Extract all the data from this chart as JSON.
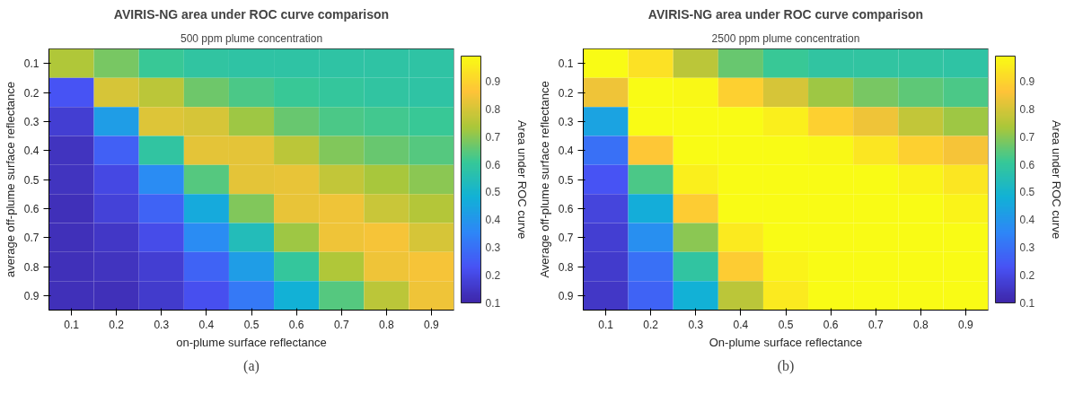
{
  "chart_data": [
    {
      "type": "heatmap",
      "title": "AVIRIS-NG area under ROC curve comparison",
      "subtitle": "500 ppm plume concentration",
      "xlabel": "on-plume surface reflectance",
      "ylabel": "average off-plume surface reflectance",
      "clabel": "Area under ROC curve",
      "annotations": [
        "(a)"
      ],
      "categories": [
        "0.1",
        "0.2",
        "0.3",
        "0.4",
        "0.5",
        "0.6",
        "0.7",
        "0.8",
        "0.9"
      ],
      "y_categories": [
        "0.1",
        "0.2",
        "0.3",
        "0.4",
        "0.5",
        "0.6",
        "0.7",
        "0.8",
        "0.9"
      ],
      "cells": [
        [
          0.74,
          0.68,
          0.61,
          0.59,
          0.58,
          0.58,
          0.58,
          0.58,
          0.58
        ],
        [
          0.23,
          0.8,
          0.76,
          0.67,
          0.63,
          0.61,
          0.6,
          0.59,
          0.58
        ],
        [
          0.17,
          0.42,
          0.81,
          0.8,
          0.72,
          0.66,
          0.63,
          0.62,
          0.61
        ],
        [
          0.14,
          0.26,
          0.59,
          0.82,
          0.82,
          0.76,
          0.69,
          0.66,
          0.64
        ],
        [
          0.14,
          0.2,
          0.37,
          0.64,
          0.82,
          0.83,
          0.77,
          0.73,
          0.7
        ],
        [
          0.13,
          0.18,
          0.27,
          0.46,
          0.69,
          0.83,
          0.84,
          0.78,
          0.75
        ],
        [
          0.13,
          0.15,
          0.21,
          0.37,
          0.54,
          0.72,
          0.84,
          0.85,
          0.8
        ],
        [
          0.13,
          0.14,
          0.17,
          0.27,
          0.42,
          0.6,
          0.74,
          0.84,
          0.85
        ],
        [
          0.13,
          0.13,
          0.16,
          0.22,
          0.32,
          0.48,
          0.64,
          0.76,
          0.84
        ]
      ],
      "clim": [
        0.1,
        0.99
      ],
      "cticks": [
        0.1,
        0.2,
        0.3,
        0.4,
        0.5,
        0.6,
        0.7,
        0.8,
        0.9
      ]
    },
    {
      "type": "heatmap",
      "title": "AVIRIS-NG area under ROC curve comparison",
      "subtitle": "2500 ppm plume concentration",
      "xlabel": "On-plume surface reflectance",
      "ylabel": "Average off-plume surface reflectance",
      "clabel": "Area under ROC curve",
      "annotations": [
        "(b)"
      ],
      "categories": [
        "0.1",
        "0.2",
        "0.3",
        "0.4",
        "0.5",
        "0.6",
        "0.7",
        "0.8",
        "0.9"
      ],
      "y_categories": [
        "0.1",
        "0.2",
        "0.3",
        "0.4",
        "0.5",
        "0.6",
        "0.7",
        "0.8",
        "0.9"
      ],
      "cells": [
        [
          0.99,
          0.93,
          0.76,
          0.66,
          0.61,
          0.59,
          0.59,
          0.59,
          0.58
        ],
        [
          0.84,
          0.99,
          0.98,
          0.89,
          0.8,
          0.72,
          0.68,
          0.65,
          0.63
        ],
        [
          0.44,
          0.99,
          0.99,
          0.99,
          0.96,
          0.89,
          0.84,
          0.77,
          0.72
        ],
        [
          0.3,
          0.87,
          0.99,
          0.99,
          0.99,
          0.98,
          0.94,
          0.89,
          0.85
        ],
        [
          0.23,
          0.63,
          0.96,
          0.99,
          0.99,
          0.99,
          0.99,
          0.97,
          0.94
        ],
        [
          0.19,
          0.47,
          0.88,
          0.99,
          0.99,
          0.99,
          0.99,
          0.99,
          0.97
        ],
        [
          0.17,
          0.38,
          0.7,
          0.95,
          0.99,
          0.99,
          0.99,
          0.99,
          0.99
        ],
        [
          0.16,
          0.3,
          0.59,
          0.88,
          0.97,
          0.99,
          0.99,
          0.99,
          0.99
        ],
        [
          0.15,
          0.27,
          0.48,
          0.76,
          0.95,
          0.99,
          0.99,
          0.99,
          0.99
        ]
      ],
      "clim": [
        0.1,
        0.99
      ],
      "cticks": [
        0.1,
        0.2,
        0.3,
        0.4,
        0.5,
        0.6,
        0.7,
        0.8,
        0.9
      ]
    }
  ]
}
